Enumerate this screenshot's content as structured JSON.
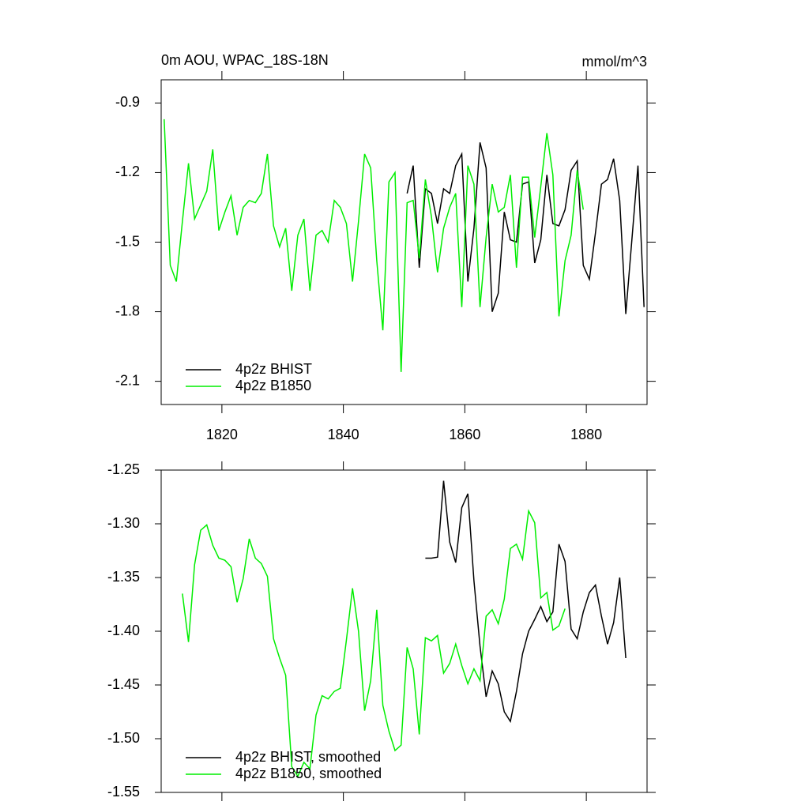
{
  "chart_data": [
    {
      "type": "line",
      "title": "0m AOU, WPAC_18S-18N",
      "units_label": "mmol/m^3",
      "xlim": [
        1810,
        1890
      ],
      "xticks": [
        1820,
        1840,
        1860,
        1880
      ],
      "ylim": [
        -2.2,
        -0.8
      ],
      "yticks": [
        -0.9,
        -1.2,
        -1.5,
        -1.8,
        -2.1
      ],
      "legend": "lower left",
      "series": [
        {
          "name": "4p2z BHIST",
          "color": "#000000",
          "x": [
            1850.5,
            1851.5,
            1852.5,
            1853.5,
            1854.5,
            1855.5,
            1856.5,
            1857.5,
            1858.5,
            1859.5,
            1860.5,
            1861.5,
            1862.5,
            1863.5,
            1864.5,
            1865.5,
            1866.5,
            1867.5,
            1868.5,
            1869.5,
            1870.5,
            1871.5,
            1872.5,
            1873.5,
            1874.5,
            1875.5,
            1876.5,
            1877.5,
            1878.5,
            1879.5,
            1880.5,
            1881.5,
            1882.5,
            1883.5,
            1884.5,
            1885.5,
            1886.5,
            1887.5,
            1888.5,
            1889.5
          ],
          "values": [
            -1.29,
            -1.17,
            -1.61,
            -1.27,
            -1.29,
            -1.42,
            -1.27,
            -1.29,
            -1.17,
            -1.12,
            -1.67,
            -1.44,
            -1.07,
            -1.18,
            -1.8,
            -1.72,
            -1.37,
            -1.49,
            -1.5,
            -1.25,
            -1.24,
            -1.59,
            -1.49,
            -1.21,
            -1.42,
            -1.43,
            -1.36,
            -1.19,
            -1.15,
            -1.6,
            -1.66,
            -1.46,
            -1.25,
            -1.23,
            -1.14,
            -1.32,
            -1.81,
            -1.49,
            -1.17,
            -1.78
          ]
        },
        {
          "name": "4p2z B1850",
          "color": "#00ee00",
          "x": [
            1810.5,
            1811.5,
            1812.5,
            1813.5,
            1814.5,
            1815.5,
            1816.5,
            1817.5,
            1818.5,
            1819.5,
            1820.5,
            1821.5,
            1822.5,
            1823.5,
            1824.5,
            1825.5,
            1826.5,
            1827.5,
            1828.5,
            1829.5,
            1830.5,
            1831.5,
            1832.5,
            1833.5,
            1834.5,
            1835.5,
            1836.5,
            1837.5,
            1838.5,
            1839.5,
            1840.5,
            1841.5,
            1842.5,
            1843.5,
            1844.5,
            1845.5,
            1846.5,
            1847.5,
            1848.5,
            1849.5,
            1850.5,
            1851.5,
            1852.5,
            1853.5,
            1854.5,
            1855.5,
            1856.5,
            1857.5,
            1858.5,
            1859.5,
            1860.5,
            1861.5,
            1862.5,
            1863.5,
            1864.5,
            1865.5,
            1866.5,
            1867.5,
            1868.5,
            1869.5,
            1870.5,
            1871.5,
            1872.5,
            1873.5,
            1874.5,
            1875.5,
            1876.5,
            1877.5,
            1878.5,
            1879.5
          ],
          "values": [
            -0.97,
            -1.6,
            -1.67,
            -1.41,
            -1.16,
            -1.4,
            -1.34,
            -1.28,
            -1.1,
            -1.45,
            -1.37,
            -1.3,
            -1.47,
            -1.35,
            -1.32,
            -1.33,
            -1.29,
            -1.12,
            -1.43,
            -1.52,
            -1.44,
            -1.71,
            -1.47,
            -1.4,
            -1.71,
            -1.47,
            -1.45,
            -1.5,
            -1.32,
            -1.35,
            -1.42,
            -1.67,
            -1.41,
            -1.12,
            -1.18,
            -1.58,
            -1.88,
            -1.24,
            -1.2,
            -2.06,
            -1.33,
            -1.32,
            -1.57,
            -1.23,
            -1.39,
            -1.63,
            -1.44,
            -1.35,
            -1.29,
            -1.78,
            -1.17,
            -1.25,
            -1.78,
            -1.48,
            -1.25,
            -1.37,
            -1.35,
            -1.21,
            -1.61,
            -1.22,
            -1.22,
            -1.48,
            -1.26,
            -1.03,
            -1.21,
            -1.82,
            -1.58,
            -1.47,
            -1.19,
            -1.36
          ]
        }
      ]
    },
    {
      "type": "line",
      "xlim": [
        1810,
        1890
      ],
      "xticks": [
        1820,
        1840,
        1860,
        1880
      ],
      "ylim": [
        -1.55,
        -1.25
      ],
      "yticks": [
        -1.25,
        {
          "value": -1.3,
          "label": "-1.30"
        },
        -1.35,
        {
          "value": -1.4,
          "label": "-1.40"
        },
        -1.45,
        {
          "value": -1.5,
          "label": "-1.50"
        },
        -1.55
      ],
      "legend": "lower left",
      "series": [
        {
          "name": "4p2z BHIST, smoothed",
          "color": "#000000",
          "x": [
            1853.5,
            1854.5,
            1855.5,
            1856.5,
            1857.5,
            1858.5,
            1859.5,
            1860.5,
            1861.5,
            1862.5,
            1863.5,
            1864.5,
            1865.5,
            1866.5,
            1867.5,
            1868.5,
            1869.5,
            1870.5,
            1871.5,
            1872.5,
            1873.5,
            1874.5,
            1875.5,
            1876.5,
            1877.5,
            1878.5,
            1879.5,
            1880.5,
            1881.5,
            1882.5,
            1883.5,
            1884.5,
            1885.5,
            1886.5
          ],
          "values": [
            -1.332,
            -1.332,
            -1.331,
            -1.26,
            -1.317,
            -1.336,
            -1.285,
            -1.272,
            -1.353,
            -1.414,
            -1.461,
            -1.437,
            -1.449,
            -1.475,
            -1.484,
            -1.456,
            -1.421,
            -1.4,
            -1.389,
            -1.377,
            -1.391,
            -1.382,
            -1.319,
            -1.335,
            -1.398,
            -1.407,
            -1.382,
            -1.364,
            -1.357,
            -1.386,
            -1.412,
            -1.392,
            -1.35,
            -1.425
          ]
        },
        {
          "name": "4p2z B1850, smoothed",
          "color": "#00ee00",
          "x": [
            1813.5,
            1814.5,
            1815.5,
            1816.5,
            1817.5,
            1818.5,
            1819.5,
            1820.5,
            1821.5,
            1822.5,
            1823.5,
            1824.5,
            1825.5,
            1826.5,
            1827.5,
            1828.5,
            1829.5,
            1830.5,
            1831.5,
            1832.5,
            1833.5,
            1834.5,
            1835.5,
            1836.5,
            1837.5,
            1838.5,
            1839.5,
            1840.5,
            1841.5,
            1842.5,
            1843.5,
            1844.5,
            1845.5,
            1846.5,
            1847.5,
            1848.5,
            1849.5,
            1850.5,
            1851.5,
            1852.5,
            1853.5,
            1854.5,
            1855.5,
            1856.5,
            1857.5,
            1858.5,
            1859.5,
            1860.5,
            1861.5,
            1862.5,
            1863.5,
            1864.5,
            1865.5,
            1866.5,
            1867.5,
            1868.5,
            1869.5,
            1870.5,
            1871.5,
            1872.5,
            1873.5,
            1874.5,
            1875.5,
            1876.5
          ],
          "values": [
            -1.365,
            -1.41,
            -1.338,
            -1.306,
            -1.301,
            -1.32,
            -1.332,
            -1.334,
            -1.34,
            -1.373,
            -1.351,
            -1.314,
            -1.332,
            -1.337,
            -1.349,
            -1.407,
            -1.425,
            -1.441,
            -1.526,
            -1.535,
            -1.522,
            -1.528,
            -1.478,
            -1.46,
            -1.463,
            -1.456,
            -1.453,
            -1.408,
            -1.36,
            -1.4,
            -1.474,
            -1.446,
            -1.38,
            -1.469,
            -1.493,
            -1.511,
            -1.506,
            -1.415,
            -1.435,
            -1.496,
            -1.406,
            -1.409,
            -1.404,
            -1.439,
            -1.43,
            -1.412,
            -1.432,
            -1.449,
            -1.435,
            -1.446,
            -1.386,
            -1.38,
            -1.393,
            -1.37,
            -1.323,
            -1.319,
            -1.333,
            -1.288,
            -1.299,
            -1.369,
            -1.364,
            -1.399,
            -1.395,
            -1.379
          ]
        }
      ]
    }
  ]
}
